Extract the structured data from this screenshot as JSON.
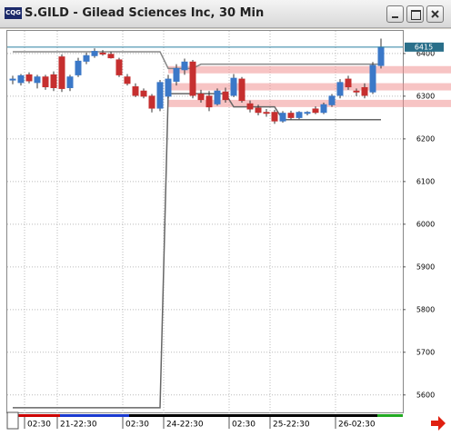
{
  "window": {
    "icon_label": "CQG",
    "title": "S.GILD - Gilead Sciences Inc, 30 Min"
  },
  "chart_data": {
    "type": "candlestick",
    "categories": [
      null,
      null,
      "02:30",
      null,
      null,
      null,
      "21-22:30",
      null,
      null,
      null,
      null,
      null,
      null,
      null,
      "02:30",
      null,
      null,
      null,
      null,
      "24-22:30",
      null,
      null,
      null,
      null,
      null,
      null,
      null,
      "02:30",
      null,
      null,
      null,
      null,
      "25-22:30",
      null,
      null,
      null,
      null,
      null,
      null,
      null,
      "26-02:30",
      null,
      null,
      null,
      null,
      null
    ],
    "open": [
      6338,
      6332,
      6350,
      6332,
      6345,
      6350,
      6392,
      6320,
      6350,
      6382,
      6395,
      6401,
      6398,
      6385,
      6345,
      6322,
      6312,
      6300,
      6272,
      6300,
      6335,
      6362,
      6380,
      6305,
      6300,
      6282,
      6310,
      6302,
      6340,
      6282,
      6272,
      6262,
      6262,
      6242,
      6260,
      6250,
      6260,
      6270,
      6262,
      6280,
      6302,
      6340,
      6312,
      6320,
      6310,
      6372
    ],
    "high": [
      6348,
      6352,
      6356,
      6350,
      6350,
      6358,
      6398,
      6350,
      6390,
      6402,
      6412,
      6408,
      6404,
      6390,
      6352,
      6330,
      6318,
      6305,
      6338,
      6350,
      6375,
      6388,
      6385,
      6315,
      6312,
      6318,
      6320,
      6352,
      6345,
      6290,
      6280,
      6270,
      6268,
      6265,
      6266,
      6265,
      6265,
      6276,
      6285,
      6305,
      6340,
      6348,
      6318,
      6330,
      6380,
      6435
    ],
    "low": [
      6328,
      6325,
      6330,
      6318,
      6315,
      6312,
      6310,
      6312,
      6345,
      6375,
      6390,
      6395,
      6388,
      6345,
      6325,
      6298,
      6295,
      6262,
      6265,
      6295,
      6325,
      6350,
      6295,
      6285,
      6265,
      6278,
      6285,
      6298,
      6285,
      6262,
      6255,
      6252,
      6235,
      6238,
      6245,
      6246,
      6255,
      6258,
      6258,
      6275,
      6295,
      6315,
      6300,
      6295,
      6305,
      6365
    ],
    "close": [
      6340,
      6348,
      6336,
      6345,
      6322,
      6320,
      6318,
      6345,
      6382,
      6395,
      6405,
      6400,
      6390,
      6350,
      6330,
      6302,
      6300,
      6272,
      6332,
      6340,
      6365,
      6380,
      6302,
      6292,
      6275,
      6312,
      6292,
      6342,
      6290,
      6270,
      6262,
      6260,
      6242,
      6260,
      6250,
      6262,
      6262,
      6262,
      6280,
      6300,
      6332,
      6322,
      6310,
      6302,
      6372,
      6415
    ],
    "up_color": "#3b78c8",
    "down_color": "#c62f2f",
    "series": [
      {
        "color": "#888888",
        "values": [
          6404,
          6404,
          6404,
          6404,
          6404,
          6404,
          6404,
          6404,
          6404,
          6404,
          6404,
          6404,
          6404,
          6404,
          6404,
          6404,
          6404,
          6404,
          6404,
          6365,
          6365,
          6365,
          6365,
          6375,
          6375,
          6375,
          6375,
          6375,
          6375,
          6375,
          6375,
          6375,
          6375,
          6375,
          6375,
          6375,
          6375,
          6375,
          6375,
          6375,
          6375,
          6375,
          6375,
          6375,
          6375,
          6375
        ]
      },
      {
        "color": "#666666",
        "values": [
          5570,
          5570,
          5570,
          5570,
          5570,
          5570,
          5570,
          5570,
          5570,
          5570,
          5570,
          5570,
          5570,
          5570,
          5570,
          5570,
          5570,
          5570,
          5570,
          6306,
          6306,
          6306,
          6306,
          6306,
          6306,
          6306,
          6306,
          6275,
          6275,
          6275,
          6275,
          6275,
          6275,
          6245,
          6245,
          6245,
          6245,
          6245,
          6245,
          6245,
          6245,
          6245,
          6245,
          6245,
          6245,
          6245
        ]
      }
    ],
    "highlight_levels": [
      6362,
      6322,
      6283
    ],
    "ylim": [
      5557,
      6453
    ],
    "yticks": [
      5600,
      5700,
      5800,
      5900,
      6000,
      6100,
      6200,
      6300,
      6400
    ],
    "grid": true
  }
}
